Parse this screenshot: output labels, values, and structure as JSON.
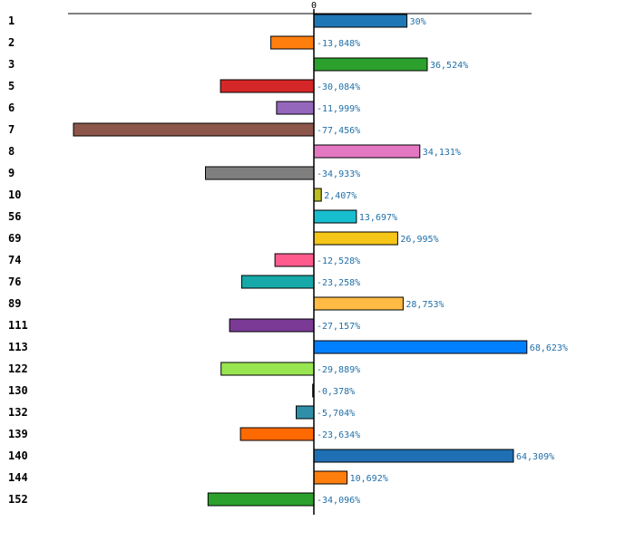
{
  "chart_data": {
    "type": "bar",
    "orientation": "horizontal",
    "categories": [
      "1",
      "2",
      "3",
      "5",
      "6",
      "7",
      "8",
      "9",
      "10",
      "56",
      "69",
      "74",
      "76",
      "89",
      "111",
      "113",
      "122",
      "130",
      "132",
      "139",
      "140",
      "144",
      "152"
    ],
    "values": [
      30,
      -13.848,
      36.524,
      -30.084,
      -11.999,
      -77.456,
      34.131,
      -34.933,
      2.407,
      13.697,
      26.995,
      -12.528,
      -23.258,
      28.753,
      -27.157,
      68.623,
      -29.889,
      -0.378,
      -5.704,
      -23.634,
      64.309,
      10.692,
      -34.096
    ],
    "value_labels": [
      "30%",
      "-13,848%",
      "36,524%",
      "-30,084%",
      "-11,999%",
      "-77,456%",
      "34,131%",
      "-34,933%",
      "2,407%",
      "13,697%",
      "26,995%",
      "-12,528%",
      "-23,258%",
      "28,753%",
      "-27,157%",
      "68,623%",
      "-29,889%",
      "-0,378%",
      "-5,704%",
      "-23,634%",
      "64,309%",
      "10,692%",
      "-34,096%"
    ],
    "colors": [
      "#1f77b4",
      "#ff7f0e",
      "#2ca02c",
      "#d62728",
      "#9467bd",
      "#8c564b",
      "#e377c2",
      "#7f7f7f",
      "#bcbd22",
      "#17becf",
      "#f5c518",
      "#ff5c8d",
      "#17a9a9",
      "#ffbb44",
      "#7b3a96",
      "#0080ff",
      "#99e550",
      "#222222",
      "#2f8fa8",
      "#ff6a00",
      "#1f6fb4",
      "#ff7f0e",
      "#2ca02c"
    ],
    "zero_tick_label": "0",
    "xlim": [
      -77.456,
      70.5
    ],
    "grid": false,
    "legend": "none"
  }
}
